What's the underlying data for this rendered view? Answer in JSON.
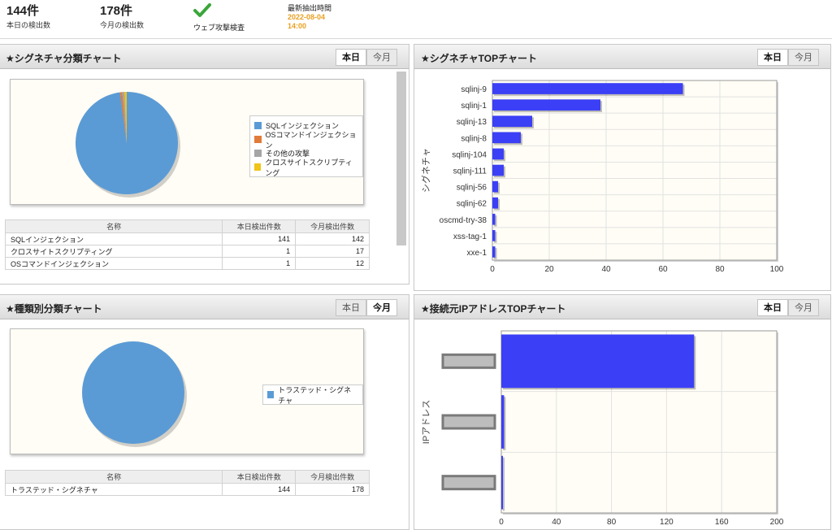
{
  "header": {
    "today_count": "144件",
    "today_label": "本日の検出数",
    "month_count": "178件",
    "month_label": "今月の検出数",
    "web_check_label": "ウェブ攻撃検査",
    "latest_label": "最新抽出時間",
    "latest_date": "2022-08-04",
    "latest_time": "14:00"
  },
  "tabs": {
    "today": "本日",
    "month": "今月"
  },
  "sig_class": {
    "title": "★シグネチャ分類チャート",
    "active_tab": "today",
    "legend": [
      {
        "label": "SQLインジェクション",
        "color": "#5b9bd5"
      },
      {
        "label": "OSコマンドインジェクション",
        "color": "#e07b39"
      },
      {
        "label": "その他の攻撃",
        "color": "#a5a5a5"
      },
      {
        "label": "クロスサイトスクリプティング",
        "color": "#f0c419"
      }
    ],
    "table": {
      "headers": [
        "名称",
        "本日検出件数",
        "今月検出件数"
      ],
      "rows": [
        [
          "SQLインジェクション",
          "141",
          "142"
        ],
        [
          "クロスサイトスクリプティング",
          "1",
          "17"
        ],
        [
          "OSコマンドインジェクション",
          "1",
          "12"
        ]
      ]
    }
  },
  "sig_top": {
    "title": "★シグネチャTOPチャート",
    "active_tab": "today"
  },
  "type_class": {
    "title": "★種類別分類チャート",
    "active_tab": "month",
    "legend": [
      {
        "label": "トラステッド・シグネチャ",
        "color": "#5b9bd5"
      }
    ],
    "table": {
      "headers": [
        "名称",
        "本日検出件数",
        "今月検出件数"
      ],
      "rows": [
        [
          "トラステッド・シグネチャ",
          "144",
          "178"
        ]
      ]
    }
  },
  "ip_top": {
    "title": "★接続元IPアドレスTOPチャート",
    "active_tab": "today"
  },
  "chart_data": [
    {
      "type": "pie",
      "categories": [
        "SQLインジェクション",
        "OSコマンドインジェクション",
        "その他の攻撃",
        "クロスサイトスクリプティング"
      ],
      "values": [
        141,
        1,
        1,
        1
      ],
      "colors": [
        "#5b9bd5",
        "#e07b39",
        "#a5a5a5",
        "#f0c419"
      ],
      "legend_position": "right"
    },
    {
      "type": "bar",
      "orientation": "horizontal",
      "categories": [
        "sqlinj-9",
        "sqlinj-1",
        "sqlinj-13",
        "sqlinj-8",
        "sqlinj-104",
        "sqlinj-111",
        "sqlinj-56",
        "sqlinj-62",
        "oscmd-try-38",
        "xss-tag-1",
        "xxe-1"
      ],
      "values": [
        67,
        38,
        14,
        10,
        4,
        4,
        2,
        2,
        1,
        1,
        1
      ],
      "ylabel": "シグネチャ",
      "xlim": [
        0,
        100
      ],
      "xticks": [
        "0",
        "20",
        "40",
        "60",
        "80",
        "100"
      ],
      "color": "#3b3ff5",
      "grid": true
    },
    {
      "type": "pie",
      "categories": [
        "トラステッド・シグネチャ"
      ],
      "values": [
        178
      ],
      "colors": [
        "#5b9bd5"
      ],
      "legend_position": "right"
    },
    {
      "type": "bar",
      "orientation": "horizontal",
      "categories": [
        "",
        "",
        ""
      ],
      "values": [
        140,
        2,
        1
      ],
      "ylabel": "IPアドレス",
      "xlim": [
        0,
        200
      ],
      "xticks": [
        "0",
        "40",
        "80",
        "120",
        "160",
        "200"
      ],
      "color": "#3b3ff5",
      "grid": true
    }
  ]
}
